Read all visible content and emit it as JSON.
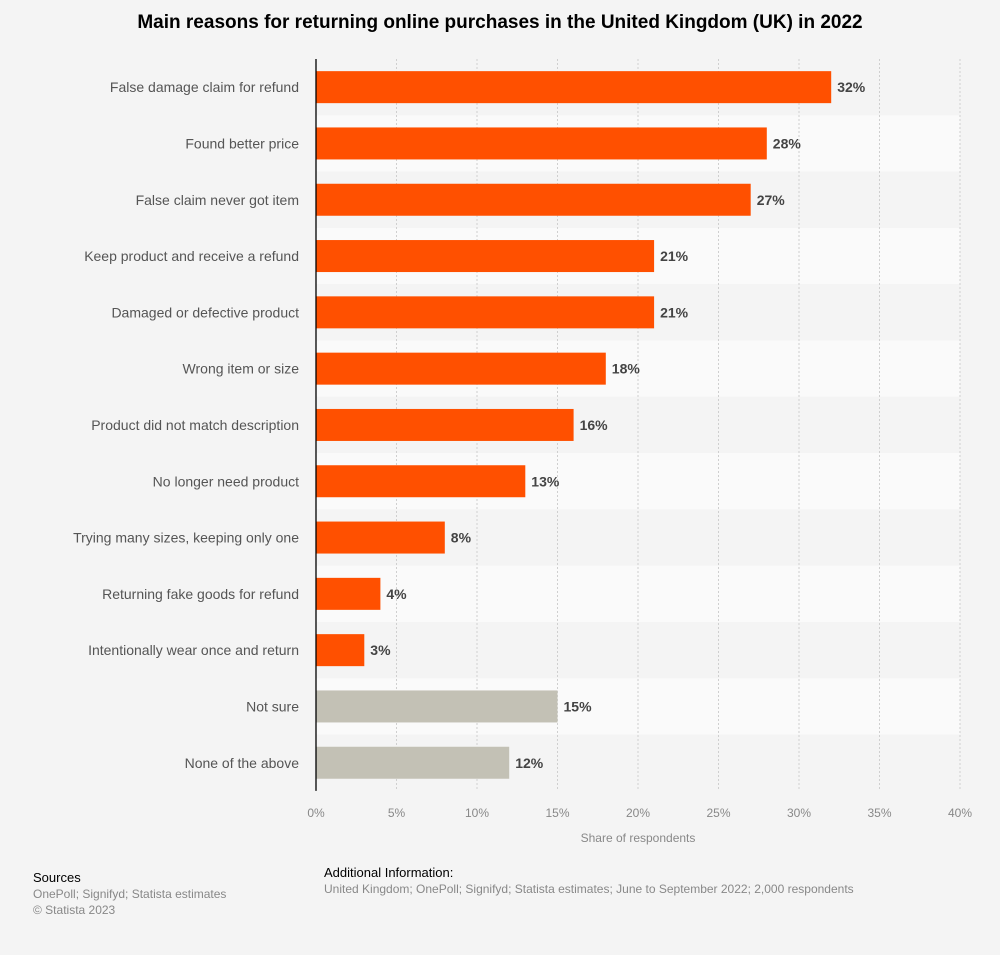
{
  "chart_data": {
    "type": "bar",
    "orientation": "horizontal",
    "title": "Main reasons for returning online purchases in the United Kingdom (UK) in 2022",
    "xlabel": "Share of respondents",
    "ylabel": "",
    "xlim": [
      0,
      40
    ],
    "xticks": [
      "0%",
      "5%",
      "10%",
      "15%",
      "20%",
      "25%",
      "30%",
      "35%",
      "40%"
    ],
    "grid": true,
    "categories": [
      "False damage claim for refund",
      "Found better price",
      "False claim never got item",
      "Keep product and receive a refund",
      "Damaged or defective product",
      "Wrong item or size",
      "Product did not match description",
      "No longer need product",
      "Trying many sizes, keeping only one",
      "Returning fake goods for refund",
      "Intentionally wear once and return",
      "Not sure",
      "None of the above"
    ],
    "values": [
      32,
      28,
      27,
      21,
      21,
      18,
      16,
      13,
      8,
      4,
      3,
      15,
      12
    ],
    "value_labels": [
      "32%",
      "28%",
      "27%",
      "21%",
      "21%",
      "18%",
      "16%",
      "13%",
      "8%",
      "4%",
      "3%",
      "15%",
      "12%"
    ],
    "colors": {
      "primary": "#ff5000",
      "neutral": "#c3c1b5"
    },
    "neutral_categories": [
      "Not sure",
      "None of the above"
    ]
  },
  "footer": {
    "sources_heading": "Sources",
    "sources": "OnePoll; Signifyd; Statista estimates",
    "copyright": "© Statista 2023",
    "additional_heading": "Additional Information:",
    "additional": "United Kingdom; OnePoll; Signifyd; Statista estimates; June to September 2022; 2,000 respondents"
  }
}
